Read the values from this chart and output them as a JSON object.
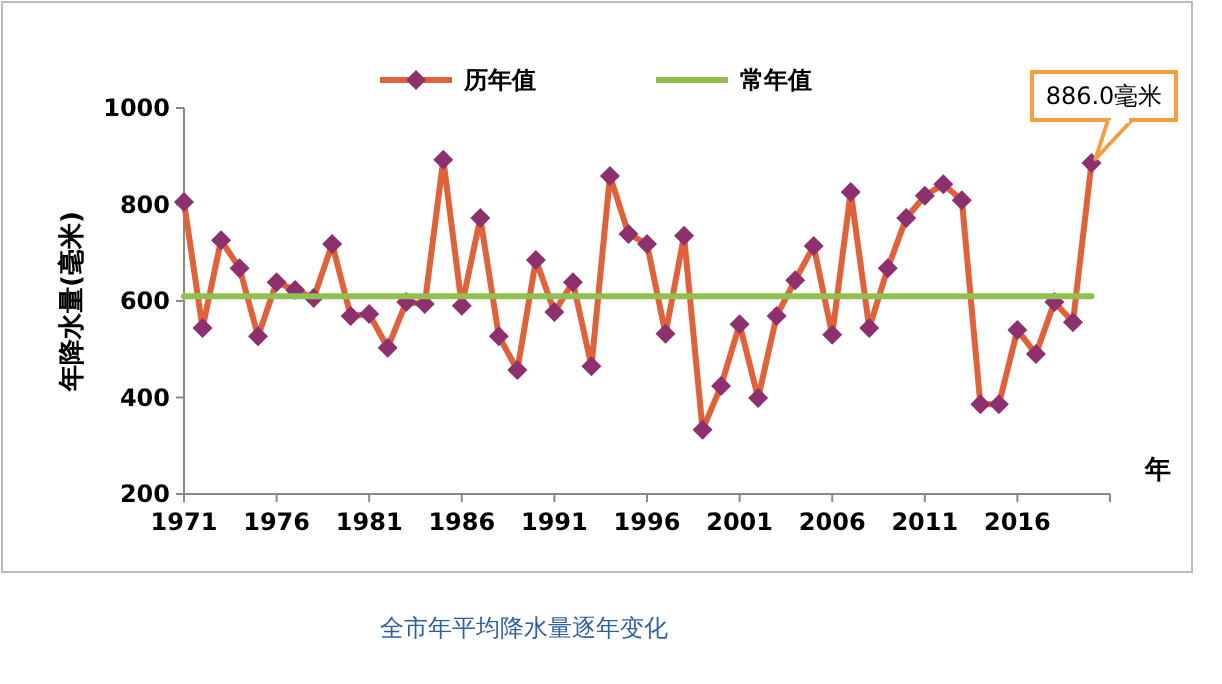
{
  "chart_data": {
    "type": "line",
    "title": "全市年平均降水量逐年变化",
    "xlabel": "年",
    "ylabel": "年降水量(毫米)",
    "xlim": [
      1971,
      2021
    ],
    "xticks": [
      1971,
      1976,
      1981,
      1986,
      1991,
      1996,
      2001,
      2006,
      2011,
      2016,
      {
        "value": 2021,
        "label": null
      }
    ],
    "ylim": [
      200,
      1000
    ],
    "yticks": [
      200,
      400,
      600,
      800,
      1000
    ],
    "grid": false,
    "legend": "top",
    "line_style": "solid",
    "annotations": [
      {
        "text": "886.0毫米",
        "x": 2020,
        "y": 886
      }
    ],
    "series": [
      {
        "name": "历年值",
        "color": "#e0623a",
        "marker": "diamond",
        "colors": [
          "#8e2f6e",
          "#8e2f6e",
          "#8e2f6e",
          "#8e2f6e",
          "#8e2f6e",
          "#8e2f6e",
          "#8e2f6e",
          "#8e2f6e",
          "#8e2f6e",
          "#8e2f6e",
          "#8e2f6e",
          "#8e2f6e",
          "#8e2f6e",
          "#8e2f6e",
          "#8e2f6e",
          "#8e2f6e",
          "#8e2f6e",
          "#8e2f6e",
          "#8e2f6e",
          "#8e2f6e",
          "#8e2f6e",
          "#8e2f6e",
          "#8e2f6e",
          "#8e2f6e",
          "#8e2f6e",
          "#8e2f6e",
          "#8e2f6e",
          "#8e2f6e",
          "#8e2f6e",
          "#8e2f6e",
          "#8e2f6e",
          "#8e2f6e",
          "#8e2f6e",
          "#8e2f6e",
          "#8e2f6e",
          "#8e2f6e",
          "#8e2f6e",
          "#8e2f6e",
          "#8e2f6e",
          "#8e2f6e",
          "#8e2f6e",
          "#8e2f6e",
          "#8e2f6e",
          "#8e2f6e",
          "#8e2f6e",
          "#8e2f6e",
          "#8e2f6e",
          "#8e2f6e",
          "#8e2f6e",
          "#8e2f6e"
        ],
        "x": [
          1971,
          1972,
          1973,
          1974,
          1975,
          1976,
          1977,
          1978,
          1979,
          1980,
          1981,
          1982,
          1983,
          1984,
          1985,
          1986,
          1987,
          1988,
          1989,
          1990,
          1991,
          1992,
          1993,
          1994,
          1995,
          1996,
          1997,
          1998,
          1999,
          2000,
          2001,
          2002,
          2003,
          2004,
          2005,
          2006,
          2007,
          2008,
          2009,
          2010,
          2011,
          2012,
          2013,
          2014,
          2015,
          2016,
          2017,
          2018,
          2019,
          2020
        ],
        "values": [
          805,
          544,
          726,
          668,
          527,
          639,
          623,
          606,
          718,
          569,
          573,
          503,
          598,
          594,
          893,
          590,
          772,
          527,
          457,
          685,
          577,
          639,
          465,
          859,
          739,
          718,
          532,
          735,
          333,
          424,
          552,
          399,
          569,
          643,
          714,
          530,
          826,
          544,
          668,
          772,
          818,
          842,
          809,
          386,
          386,
          540,
          490,
          598,
          556,
          886
        ]
      },
      {
        "name": "常年值",
        "color": "#92c050",
        "marker": "none",
        "x": [
          1971,
          2020
        ],
        "values": [
          610,
          610
        ]
      }
    ]
  }
}
